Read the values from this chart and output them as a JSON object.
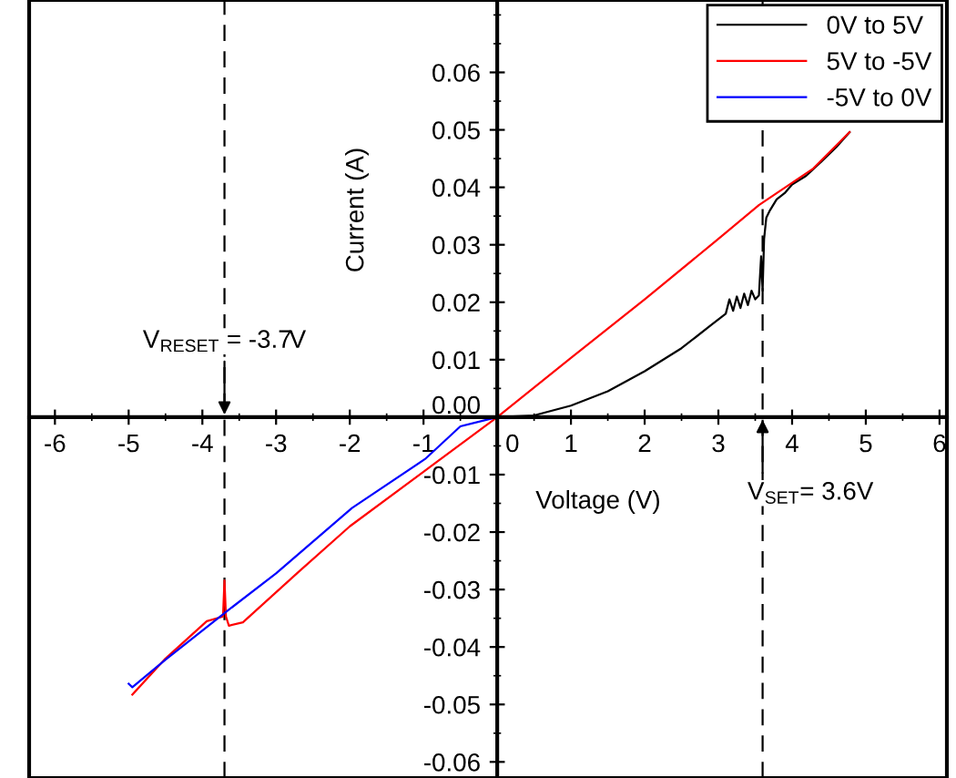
{
  "chart_data": {
    "type": "line",
    "xlabel": "Voltage (V)",
    "ylabel": "Current (A)",
    "xlim": [
      -6.35,
      6.1
    ],
    "ylim": [
      -0.0628,
      0.0726
    ],
    "xticks": [
      -6,
      -5,
      -4,
      -3,
      -2,
      -1,
      0,
      1,
      2,
      3,
      4,
      5,
      6
    ],
    "yticks": [
      {
        "value": -0.06,
        "label": "-0.06"
      },
      {
        "value": -0.05,
        "label": "-0.05"
      },
      {
        "value": -0.04,
        "label": "-0.04"
      },
      {
        "value": -0.03,
        "label": "-0.03"
      },
      {
        "value": -0.02,
        "label": "-0.02"
      },
      {
        "value": -0.01,
        "label": "-0.01"
      },
      {
        "value": 0,
        "label": "0.00"
      },
      {
        "value": 0.01,
        "label": "0.01"
      },
      {
        "value": 0.02,
        "label": "0.02"
      },
      {
        "value": 0.03,
        "label": "0.03"
      },
      {
        "value": 0.04,
        "label": "0.04"
      },
      {
        "value": 0.05,
        "label": "0.05"
      },
      {
        "value": 0.06,
        "label": "0.06"
      }
    ],
    "grid": false,
    "legend": "top right",
    "marker": "none",
    "line_style": "solid",
    "series": [
      {
        "name": "0V to 5V",
        "color": "#000000",
        "x": [
          0,
          0.5,
          1,
          1.5,
          2,
          2.5,
          2.9,
          3.1,
          3.15,
          3.2,
          3.25,
          3.3,
          3.35,
          3.4,
          3.45,
          3.5,
          3.55,
          3.58,
          3.6,
          3.62,
          3.65,
          3.7,
          3.79,
          3.9,
          4.0,
          4.19,
          4.4,
          4.6,
          4.78
        ],
        "values": [
          0,
          0.0003,
          0.002,
          0.0045,
          0.008,
          0.012,
          0.016,
          0.018,
          0.0205,
          0.0185,
          0.021,
          0.019,
          0.0215,
          0.0195,
          0.022,
          0.0205,
          0.0212,
          0.028,
          0.022,
          0.031,
          0.0347,
          0.036,
          0.0379,
          0.039,
          0.0405,
          0.042,
          0.0445,
          0.047,
          0.0496
        ]
      },
      {
        "name": "5V to -5V",
        "color": "#ff0000",
        "x": [
          4.78,
          4.29,
          3.55,
          2.96,
          2,
          1,
          0,
          -1,
          -2,
          -2.7,
          -3.45,
          -3.64,
          -3.68,
          -3.7,
          -3.72,
          -3.94,
          -4.5,
          -4.95
        ],
        "values": [
          0.0496,
          0.0433,
          0.0369,
          0.0306,
          0.0205,
          0.0103,
          0,
          -0.0095,
          -0.019,
          -0.027,
          -0.0357,
          -0.0363,
          -0.0347,
          -0.0284,
          -0.0347,
          -0.0355,
          -0.042,
          -0.0483
        ]
      },
      {
        "name": "-5V to 0V",
        "color": "#0000ff",
        "x": [
          -5,
          -4.95,
          -4.5,
          -3.69,
          -3,
          -1.97,
          -0.98,
          -0.5,
          0
        ],
        "values": [
          -0.0464,
          -0.047,
          -0.0422,
          -0.034,
          -0.0272,
          -0.0158,
          -0.0073,
          -0.0016,
          0
        ]
      }
    ],
    "ref_lines": [
      {
        "axis": "x",
        "value": -3.7,
        "label": "V$_{RESET}$ = -3.7V",
        "line_style": "dashed",
        "color": "#000000"
      },
      {
        "axis": "x",
        "value": 3.6,
        "label": "V$_{SET}$= 3.6V",
        "line_style": "dashed",
        "color": "#000000"
      }
    ]
  }
}
